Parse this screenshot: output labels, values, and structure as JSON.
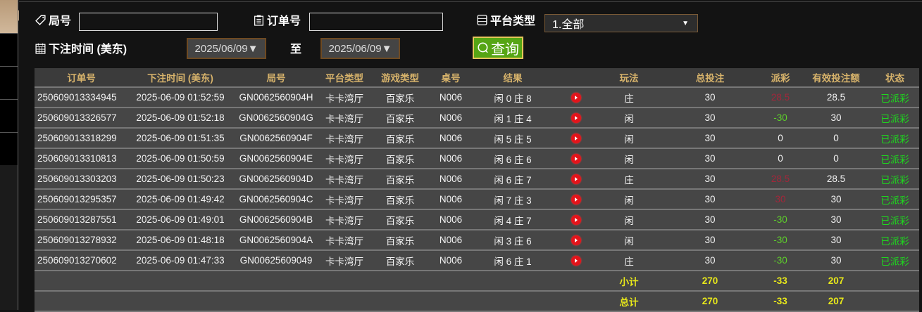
{
  "filters": {
    "round_label": "局号",
    "round_value": "",
    "order_label": "订单号",
    "order_value": "",
    "platform_label": "平台类型",
    "platform_value": "1.全部",
    "time_label": "下注时间 (美东)",
    "date_from": "2025/06/09▼",
    "to_label": "至",
    "date_to": "2025/06/09▼",
    "query_label": "查询"
  },
  "table": {
    "headers": [
      "订单号",
      "下注时间 (美东)",
      "局号",
      "平台类型",
      "游戏类型",
      "桌号",
      "结果",
      "",
      "玩法",
      "总投注",
      "派彩",
      "有效投注额",
      "状态"
    ],
    "rows": [
      {
        "order": "250609013334945",
        "time": "2025-06-09 01:52:59",
        "round": "GN0062560904H",
        "platform": "卡卡湾厅",
        "game": "百家乐",
        "table": "N006",
        "result": "闲 0 庄 8",
        "play": "庄",
        "bet": "30",
        "payout": "28.5",
        "payout_color": "red",
        "valid": "28.5",
        "status": "已派彩"
      },
      {
        "order": "250609013326577",
        "time": "2025-06-09 01:52:18",
        "round": "GN0062560904G",
        "platform": "卡卡湾厅",
        "game": "百家乐",
        "table": "N006",
        "result": "闲 1 庄 4",
        "play": "闲",
        "bet": "30",
        "payout": "-30",
        "payout_color": "green",
        "valid": "30",
        "status": "已派彩"
      },
      {
        "order": "250609013318299",
        "time": "2025-06-09 01:51:35",
        "round": "GN0062560904F",
        "platform": "卡卡湾厅",
        "game": "百家乐",
        "table": "N006",
        "result": "闲 5 庄 5",
        "play": "闲",
        "bet": "30",
        "payout": "0",
        "payout_color": "white",
        "valid": "0",
        "status": "已派彩"
      },
      {
        "order": "250609013310813",
        "time": "2025-06-09 01:50:59",
        "round": "GN0062560904E",
        "platform": "卡卡湾厅",
        "game": "百家乐",
        "table": "N006",
        "result": "闲 6 庄 6",
        "play": "闲",
        "bet": "30",
        "payout": "0",
        "payout_color": "white",
        "valid": "0",
        "status": "已派彩"
      },
      {
        "order": "250609013303203",
        "time": "2025-06-09 01:50:23",
        "round": "GN0062560904D",
        "platform": "卡卡湾厅",
        "game": "百家乐",
        "table": "N006",
        "result": "闲 6 庄 7",
        "play": "庄",
        "bet": "30",
        "payout": "28.5",
        "payout_color": "red",
        "valid": "28.5",
        "status": "已派彩"
      },
      {
        "order": "250609013295357",
        "time": "2025-06-09 01:49:42",
        "round": "GN0062560904C",
        "platform": "卡卡湾厅",
        "game": "百家乐",
        "table": "N006",
        "result": "闲 7 庄 3",
        "play": "闲",
        "bet": "30",
        "payout": "30",
        "payout_color": "red",
        "valid": "30",
        "status": "已派彩"
      },
      {
        "order": "250609013287551",
        "time": "2025-06-09 01:49:01",
        "round": "GN0062560904B",
        "platform": "卡卡湾厅",
        "game": "百家乐",
        "table": "N006",
        "result": "闲 4 庄 7",
        "play": "闲",
        "bet": "30",
        "payout": "-30",
        "payout_color": "green",
        "valid": "30",
        "status": "已派彩"
      },
      {
        "order": "250609013278932",
        "time": "2025-06-09 01:48:18",
        "round": "GN0062560904A",
        "platform": "卡卡湾厅",
        "game": "百家乐",
        "table": "N006",
        "result": "闲 3 庄 6",
        "play": "闲",
        "bet": "30",
        "payout": "-30",
        "payout_color": "green",
        "valid": "30",
        "status": "已派彩"
      },
      {
        "order": "250609013270602",
        "time": "2025-06-09 01:47:33",
        "round": "GN00625609049",
        "platform": "卡卡湾厅",
        "game": "百家乐",
        "table": "N006",
        "result": "闲 6 庄 1",
        "play": "庄",
        "bet": "30",
        "payout": "-30",
        "payout_color": "green",
        "valid": "30",
        "status": "已派彩"
      }
    ],
    "subtotal": {
      "label": "小计",
      "bet": "270",
      "payout": "-33",
      "valid": "207"
    },
    "total": {
      "label": "总计",
      "bet": "270",
      "payout": "-33",
      "valid": "207"
    }
  },
  "colors": {
    "header_text": "#d7b36b",
    "payout_red": "#a3263a",
    "payout_green": "#5ed12a",
    "status_green": "#1ed81e",
    "summary_yellow": "#e8e81a",
    "query_button": "#56a514"
  }
}
